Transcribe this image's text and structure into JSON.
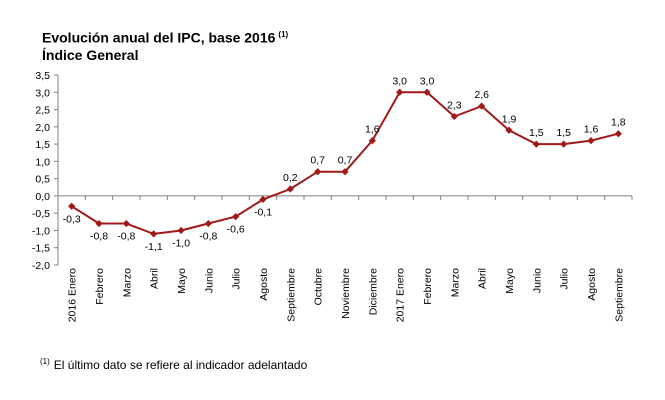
{
  "title": "Evolución anual del IPC, base 2016",
  "title_note": "(1)",
  "subtitle": "Índice General",
  "footnote_mark": "(1)",
  "footnote_text": "El último dato se refiere al indicador adelantado",
  "colors": {
    "series": "#a01818",
    "axis": "#808080",
    "text": "#000000"
  },
  "chart_data": {
    "type": "line",
    "title": "Evolución anual del IPC, base 2016 (1)",
    "subtitle": "Índice General",
    "categories": [
      "2016 Enero",
      "Febrero",
      "Marzo",
      "Abril",
      "Mayo",
      "Junio",
      "Julio",
      "Agosto",
      "Septiembre",
      "Octubre",
      "Noviembre",
      "Diciembre",
      "2017 Enero",
      "Febrero",
      "Marzo",
      "Abril",
      "Mayo",
      "Junio",
      "Julio",
      "Agosto",
      "Septiembre"
    ],
    "values": [
      -0.3,
      -0.8,
      -0.8,
      -1.1,
      -1.0,
      -0.8,
      -0.6,
      -0.1,
      0.2,
      0.7,
      0.7,
      1.6,
      3.0,
      3.0,
      2.3,
      2.6,
      1.9,
      1.5,
      1.5,
      1.6,
      1.8
    ],
    "data_labels": [
      "-0,3",
      "-0,8",
      "-0,8",
      "-1,1",
      "-1,0",
      "-0,8",
      "-0,6",
      "-0,1",
      "0,2",
      "0,7",
      "0,7",
      "1,6",
      "3,0",
      "3,0",
      "2,3",
      "2,6",
      "1,9",
      "1,5",
      "1,5",
      "1,6",
      "1,8"
    ],
    "ylim": [
      -2.0,
      3.5
    ],
    "yticks": [
      -2.0,
      -1.5,
      -1.0,
      -0.5,
      0.0,
      0.5,
      1.0,
      1.5,
      2.0,
      2.5,
      3.0,
      3.5
    ],
    "ytick_labels": [
      "-2,0",
      "-1,5",
      "-1,0",
      "-0,5",
      "0,0",
      "0,5",
      "1,0",
      "1,5",
      "2,0",
      "2,5",
      "3,0",
      "3,5"
    ],
    "grid": false,
    "legend": "none",
    "xlabel": "",
    "ylabel": ""
  }
}
